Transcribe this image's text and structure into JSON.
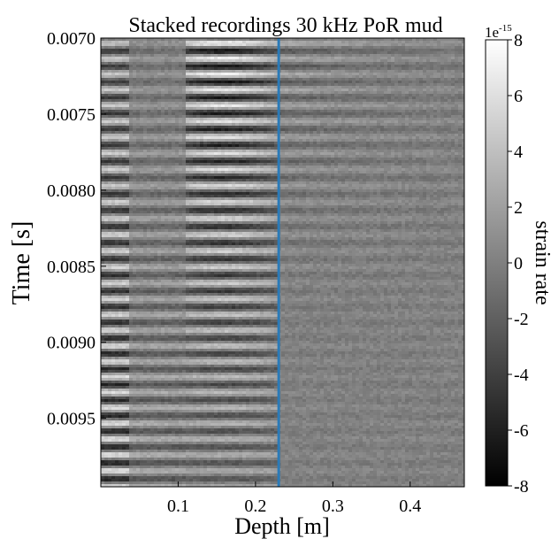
{
  "chart_data": {
    "type": "heatmap",
    "title": "Stacked recordings 30 kHz PoR mud",
    "xlabel": "Depth [m]",
    "ylabel": "Time [s]",
    "xlim": [
      0.0,
      0.47
    ],
    "ylim": [
      0.00995,
      0.007
    ],
    "xticks": [
      0.1,
      0.2,
      0.3,
      0.4
    ],
    "xtick_labels": [
      "0.1",
      "0.2",
      "0.3",
      "0.4"
    ],
    "yticks": [
      0.007,
      0.0075,
      0.008,
      0.0085,
      0.009,
      0.0095
    ],
    "ytick_labels": [
      "0.0070",
      "0.0075",
      "0.0080",
      "0.0085",
      "0.0090",
      "0.0095"
    ],
    "colormap": "gray",
    "colorbar": {
      "label": "strain rate",
      "multiplier": "1e",
      "exponent": "-15",
      "range": [
        -8,
        8
      ],
      "ticks": [
        8,
        6,
        4,
        2,
        0,
        -2,
        -4,
        -6,
        -8
      ],
      "tick_labels": [
        "8",
        "6",
        "4",
        "2",
        "0",
        "-2",
        "-4",
        "-6",
        "-8"
      ]
    },
    "marker_line": {
      "orientation": "vertical",
      "x": 0.23,
      "color": "#2a7ab8"
    },
    "grid": false
  }
}
